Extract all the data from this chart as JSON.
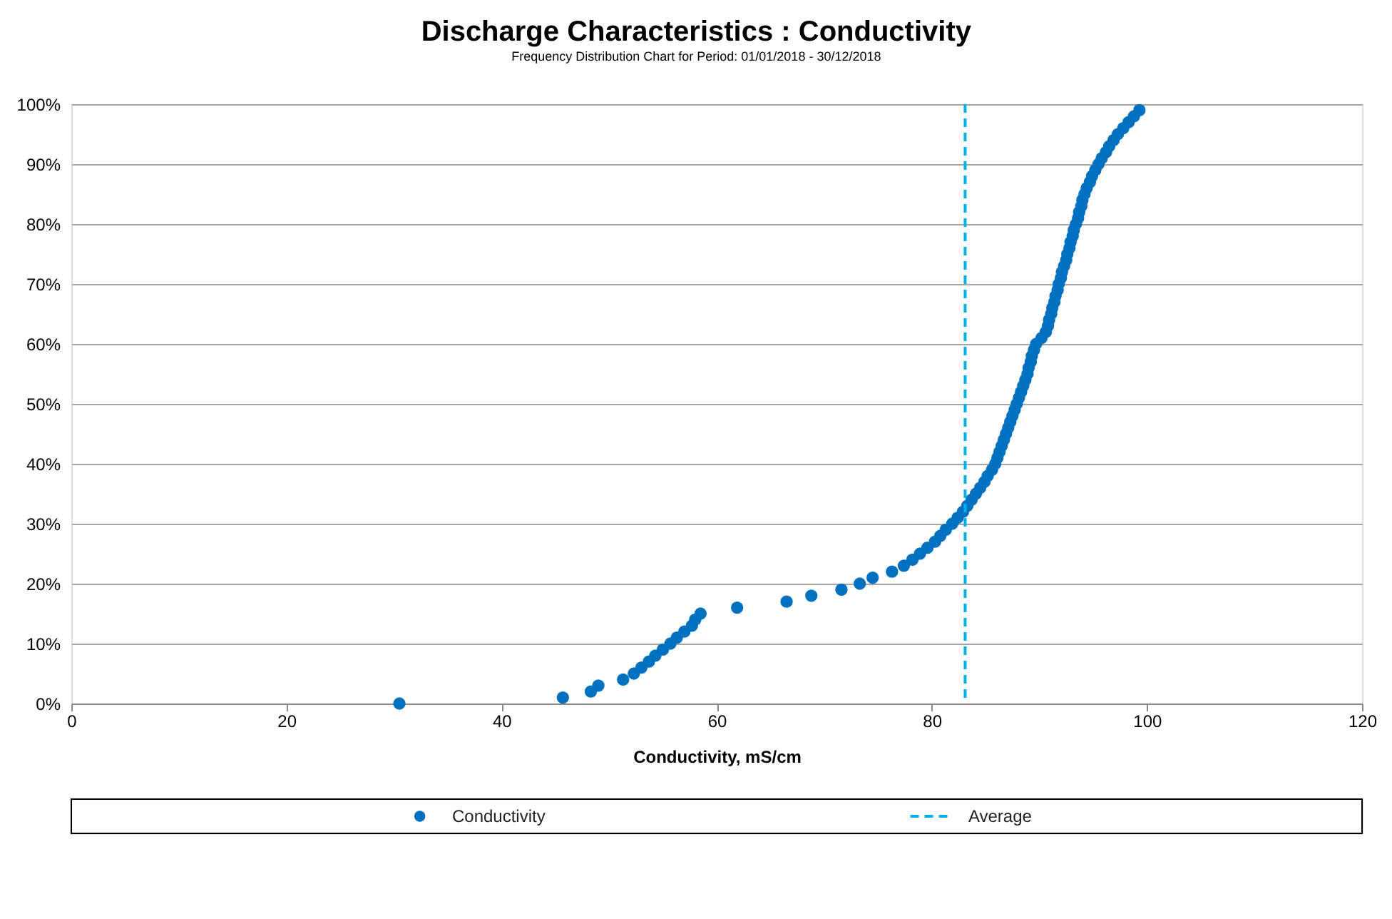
{
  "chart_data": {
    "type": "scatter",
    "title": "Discharge Characteristics : Conductivity",
    "subtitle": "Frequency  Distribution Chart for Period: 01/01/2018 - 30/12/2018",
    "xlabel": "Conductivity, mS/cm",
    "series": [
      {
        "name": "Conductivity",
        "color": "#0070c0",
        "x": [
          30.5,
          45.7,
          48.3,
          49.0,
          51.3,
          52.3,
          53.0,
          53.7,
          54.3,
          55.0,
          55.7,
          56.3,
          57.0,
          57.7,
          58.0,
          58.5,
          61.9,
          66.5,
          68.8,
          71.6,
          73.3,
          74.5,
          76.3,
          77.4,
          78.2,
          78.9,
          79.6,
          80.3,
          80.8,
          81.3,
          81.9,
          82.4,
          82.9,
          83.3,
          83.7,
          84.1,
          84.5,
          84.9,
          85.2,
          85.6,
          85.9,
          86.1,
          86.3,
          86.5,
          86.7,
          86.9,
          87.1,
          87.3,
          87.5,
          87.7,
          87.9,
          88.1,
          88.3,
          88.5,
          88.7,
          88.9,
          89.0,
          89.2,
          89.3,
          89.5,
          89.7,
          90.2,
          90.6,
          90.8,
          90.9,
          91.1,
          91.2,
          91.4,
          91.5,
          91.7,
          91.8,
          92.0,
          92.1,
          92.3,
          92.5,
          92.6,
          92.8,
          92.9,
          93.1,
          93.2,
          93.4,
          93.6,
          93.7,
          93.9,
          94.0,
          94.2,
          94.4,
          94.7,
          94.9,
          95.2,
          95.5,
          95.8,
          96.2,
          96.5,
          96.9,
          97.3,
          97.8,
          98.3,
          98.8,
          99.3
        ],
        "values": [
          0,
          1,
          2,
          3,
          4,
          5,
          6,
          7,
          8,
          9,
          10,
          11,
          12,
          13,
          14,
          15,
          16,
          17,
          18,
          19,
          20,
          21,
          22,
          23,
          24,
          25,
          26,
          27,
          28,
          29,
          30,
          31,
          32,
          33,
          34,
          35,
          36,
          37,
          38,
          39,
          40,
          41,
          42,
          43,
          44,
          45,
          46,
          47,
          48,
          49,
          50,
          51,
          52,
          53,
          54,
          55,
          56,
          57,
          58,
          59,
          60,
          61,
          62,
          63,
          64,
          65,
          66,
          67,
          68,
          69,
          70,
          71,
          72,
          73,
          74,
          75,
          76,
          77,
          78,
          79,
          80,
          81,
          82,
          83,
          84,
          85,
          86,
          87,
          88,
          89,
          90,
          91,
          92,
          93,
          94,
          95,
          96,
          97,
          98,
          99
        ]
      }
    ],
    "ref_lines": [
      {
        "axis": "x",
        "value": 83.1,
        "label": "Average",
        "color": "#00b0f0",
        "line_style": "dashed"
      }
    ],
    "marker": "circle",
    "xlim": [
      0,
      120
    ],
    "xticks": [
      0,
      20,
      40,
      60,
      80,
      100,
      120
    ],
    "ylim": [
      0,
      100
    ],
    "yticks": [
      {
        "value": 0,
        "label": "0%"
      },
      {
        "value": 10,
        "label": "10%"
      },
      {
        "value": 20,
        "label": "20%"
      },
      {
        "value": 30,
        "label": "30%"
      },
      {
        "value": 40,
        "label": "40%"
      },
      {
        "value": 50,
        "label": "50%"
      },
      {
        "value": 60,
        "label": "60%"
      },
      {
        "value": 70,
        "label": "70%"
      },
      {
        "value": 80,
        "label": "80%"
      },
      {
        "value": 90,
        "label": "90%"
      },
      {
        "value": 100,
        "label": "100%"
      }
    ],
    "grid": "y",
    "legend": "bottom"
  }
}
